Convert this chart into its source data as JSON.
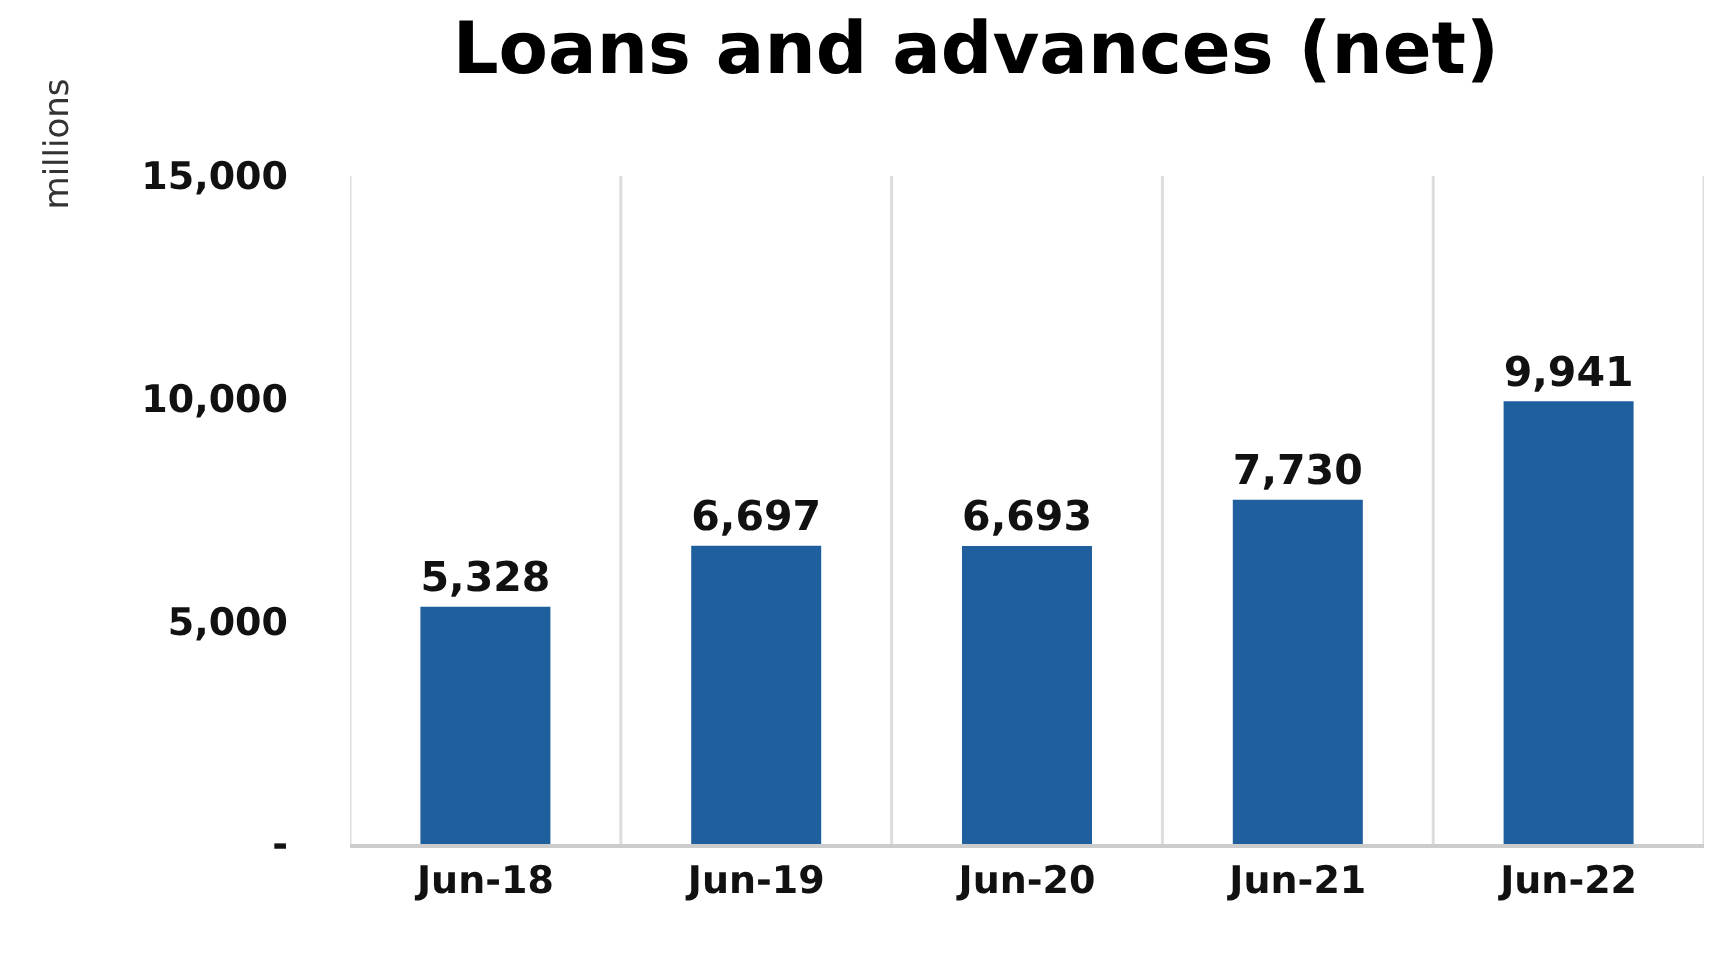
{
  "chart_data": {
    "type": "bar",
    "title": "Loans and advances (net)",
    "ylabel": "millions",
    "categories": [
      "Jun-18",
      "Jun-19",
      "Jun-20",
      "Jun-21",
      "Jun-22"
    ],
    "values": [
      5328,
      6697,
      6693,
      7730,
      9941
    ],
    "color": "#1f5f9e",
    "ylim": [
      0,
      15000
    ],
    "yticks": [
      {
        "value": 0,
        "label": "-"
      },
      {
        "value": 5000,
        "label": "5,000"
      },
      {
        "value": 10000,
        "label": "10,000"
      },
      {
        "value": 15000,
        "label": "15,000"
      }
    ],
    "grid": "x",
    "value_labels": [
      "5,328",
      "6,697",
      "6,693",
      "7,730",
      "9,941"
    ]
  }
}
